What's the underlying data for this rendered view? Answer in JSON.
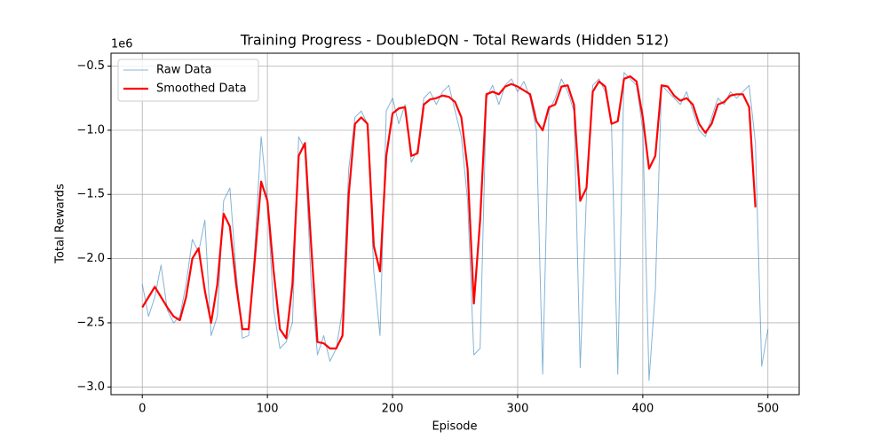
{
  "chart_data": {
    "type": "line",
    "title": "Training Progress - DoubleDQN - Total Rewards (Hidden 512)",
    "x_label": "Episode",
    "y_label": "Total Rewards",
    "y_offset_label": "1e6",
    "x": [
      0,
      5,
      10,
      15,
      20,
      25,
      30,
      35,
      40,
      45,
      50,
      55,
      60,
      65,
      70,
      75,
      80,
      85,
      90,
      95,
      100,
      105,
      110,
      115,
      120,
      125,
      130,
      135,
      140,
      145,
      150,
      155,
      160,
      165,
      170,
      175,
      180,
      185,
      190,
      195,
      200,
      205,
      210,
      215,
      220,
      225,
      230,
      235,
      240,
      245,
      250,
      255,
      260,
      265,
      270,
      275,
      280,
      285,
      290,
      295,
      300,
      305,
      310,
      315,
      320,
      325,
      330,
      335,
      340,
      345,
      350,
      355,
      360,
      365,
      370,
      375,
      380,
      385,
      390,
      395,
      400,
      405,
      410,
      415,
      420,
      425,
      430,
      435,
      440,
      445,
      450,
      455,
      460,
      465,
      470,
      475,
      480,
      485,
      490,
      495,
      500
    ],
    "series": [
      {
        "name": "Raw Data",
        "color": "#1f77b4",
        "values": [
          -2.2,
          -2.45,
          -2.3,
          -2.05,
          -2.4,
          -2.5,
          -2.45,
          -2.2,
          -1.85,
          -1.95,
          -1.7,
          -2.6,
          -2.45,
          -1.55,
          -1.45,
          -2.1,
          -2.62,
          -2.6,
          -1.9,
          -1.05,
          -1.55,
          -2.4,
          -2.7,
          -2.65,
          -2.5,
          -1.05,
          -1.15,
          -2.2,
          -2.75,
          -2.6,
          -2.8,
          -2.7,
          -2.4,
          -1.3,
          -0.9,
          -0.85,
          -0.95,
          -2.1,
          -2.6,
          -0.85,
          -0.75,
          -0.95,
          -0.8,
          -1.25,
          -1.15,
          -0.75,
          -0.7,
          -0.8,
          -0.7,
          -0.65,
          -0.85,
          -1.05,
          -1.55,
          -2.75,
          -2.7,
          -0.75,
          -0.65,
          -0.8,
          -0.65,
          -0.6,
          -0.7,
          -0.62,
          -0.75,
          -1.0,
          -2.9,
          -0.85,
          -0.75,
          -0.6,
          -0.7,
          -0.85,
          -2.85,
          -1.5,
          -0.65,
          -0.6,
          -0.7,
          -0.95,
          -2.9,
          -0.55,
          -0.6,
          -0.65,
          -1.0,
          -2.95,
          -2.25,
          -0.65,
          -0.7,
          -0.75,
          -0.8,
          -0.7,
          -0.85,
          -1.0,
          -1.05,
          -0.9,
          -0.75,
          -0.8,
          -0.7,
          -0.75,
          -0.7,
          -0.65,
          -1.1,
          -2.84,
          -2.55
        ]
      },
      {
        "name": "Smoothed Data",
        "color": "#ff0000",
        "values": [
          -2.38,
          -2.3,
          -2.22,
          -2.3,
          -2.38,
          -2.45,
          -2.48,
          -2.3,
          -2.0,
          -1.92,
          -2.25,
          -2.5,
          -2.2,
          -1.65,
          -1.75,
          -2.2,
          -2.55,
          -2.55,
          -2.0,
          -1.4,
          -1.55,
          -2.1,
          -2.55,
          -2.62,
          -2.2,
          -1.2,
          -1.1,
          -1.9,
          -2.65,
          -2.66,
          -2.7,
          -2.7,
          -2.6,
          -1.5,
          -0.95,
          -0.9,
          -0.95,
          -1.9,
          -2.1,
          -1.2,
          -0.87,
          -0.83,
          -0.82,
          -1.2,
          -1.18,
          -0.8,
          -0.76,
          -0.75,
          -0.73,
          -0.74,
          -0.78,
          -0.9,
          -1.3,
          -2.35,
          -1.7,
          -0.72,
          -0.7,
          -0.72,
          -0.66,
          -0.64,
          -0.66,
          -0.69,
          -0.72,
          -0.93,
          -1.0,
          -0.82,
          -0.8,
          -0.66,
          -0.65,
          -0.8,
          -1.55,
          -1.45,
          -0.7,
          -0.62,
          -0.66,
          -0.95,
          -0.93,
          -0.6,
          -0.58,
          -0.62,
          -0.9,
          -1.3,
          -1.2,
          -0.65,
          -0.66,
          -0.73,
          -0.77,
          -0.75,
          -0.8,
          -0.95,
          -1.02,
          -0.95,
          -0.8,
          -0.78,
          -0.73,
          -0.72,
          -0.72,
          -0.82,
          -1.6,
          null,
          null
        ]
      }
    ],
    "xlim": [
      -25,
      525
    ],
    "ylim": [
      -3.06,
      -0.4
    ],
    "xticks": [
      0,
      100,
      200,
      300,
      400,
      500
    ],
    "yticks": [
      {
        "value": -3.0,
        "label": "−3.0"
      },
      {
        "value": -2.5,
        "label": "−2.5"
      },
      {
        "value": -2.0,
        "label": "−2.0"
      },
      {
        "value": -1.5,
        "label": "−1.5"
      },
      {
        "value": -1.0,
        "label": "−1.0"
      },
      {
        "value": -0.5,
        "label": "−0.5"
      }
    ],
    "grid": true,
    "legend": "upper left"
  }
}
